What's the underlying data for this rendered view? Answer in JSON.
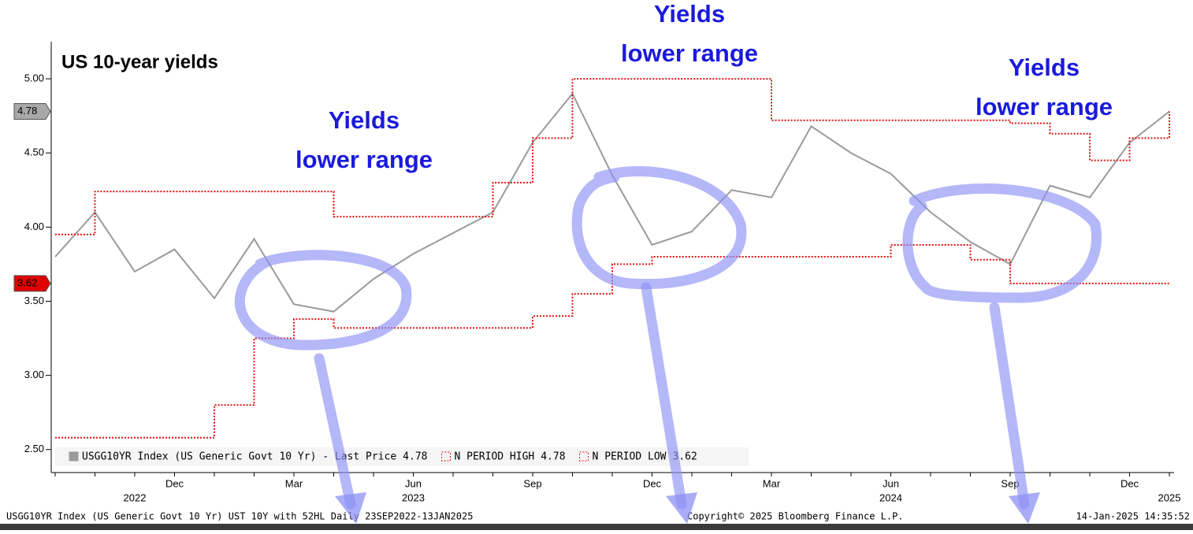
{
  "chart_data": {
    "type": "line",
    "title": "US 10-year yields",
    "x": [
      "2022-09",
      "2022-10",
      "2022-11",
      "2022-12",
      "2023-01",
      "2023-02",
      "2023-03",
      "2023-04",
      "2023-05",
      "2023-06",
      "2023-07",
      "2023-08",
      "2023-09",
      "2023-10",
      "2023-11",
      "2023-12",
      "2024-01",
      "2024-02",
      "2024-03",
      "2024-04",
      "2024-05",
      "2024-06",
      "2024-07",
      "2024-08",
      "2024-09",
      "2024-10",
      "2024-11",
      "2024-12",
      "2025-01"
    ],
    "series": [
      {
        "name": "USGG10YR Index (US Generic Govt 10 Yr) - Last Price",
        "color": "#9a9a9a",
        "style": "solid",
        "legend_value": 4.78,
        "values": [
          3.8,
          4.1,
          3.7,
          3.85,
          3.52,
          3.92,
          3.48,
          3.43,
          3.65,
          3.82,
          3.96,
          4.1,
          4.57,
          4.9,
          4.35,
          3.88,
          3.97,
          4.25,
          4.2,
          4.68,
          4.5,
          4.36,
          4.1,
          3.9,
          3.75,
          4.28,
          4.2,
          4.57,
          4.78
        ]
      },
      {
        "name": "N PERIOD HIGH",
        "color": "#e01010",
        "style": "step",
        "legend_value": 4.78,
        "values": [
          3.95,
          4.24,
          4.24,
          4.24,
          4.24,
          4.24,
          4.24,
          4.07,
          4.07,
          4.07,
          4.07,
          4.3,
          4.6,
          5.0,
          5.0,
          5.0,
          5.0,
          5.0,
          4.72,
          4.72,
          4.72,
          4.72,
          4.72,
          4.72,
          4.7,
          4.63,
          4.45,
          4.6,
          4.78
        ]
      },
      {
        "name": "N PERIOD LOW",
        "color": "#e01010",
        "style": "step",
        "legend_value": 3.62,
        "values": [
          2.58,
          2.58,
          2.58,
          2.58,
          2.8,
          3.25,
          3.38,
          3.32,
          3.32,
          3.32,
          3.32,
          3.32,
          3.4,
          3.55,
          3.75,
          3.8,
          3.8,
          3.8,
          3.8,
          3.8,
          3.8,
          3.88,
          3.88,
          3.78,
          3.62,
          3.62,
          3.62,
          3.62,
          3.62
        ]
      }
    ],
    "ylim": [
      2.35,
      5.25
    ],
    "yticks": [
      {
        "value": 2.5,
        "label": "2.50"
      },
      {
        "value": 3,
        "label": "3.00"
      },
      {
        "value": 3.5,
        "label": "3.50"
      },
      {
        "value": 4,
        "label": "4.00"
      },
      {
        "value": 4.5,
        "label": "4.50"
      },
      {
        "value": 5,
        "label": "5.00"
      }
    ],
    "xticks": [
      {
        "value": "2022-12",
        "label": "Dec"
      },
      {
        "value": "2023-03",
        "label": "Mar"
      },
      {
        "value": "2023-06",
        "label": "Jun"
      },
      {
        "value": "2023-09",
        "label": "Sep"
      },
      {
        "value": "2023-12",
        "label": "Dec"
      },
      {
        "value": "2024-03",
        "label": "Mar"
      },
      {
        "value": "2024-06",
        "label": "Jun"
      },
      {
        "value": "2024-09",
        "label": "Sep"
      },
      {
        "value": "2024-12",
        "label": "Dec"
      }
    ],
    "year_labels": [
      {
        "value": "2022-11",
        "label": "2022"
      },
      {
        "value": "2023-06",
        "label": "2023"
      },
      {
        "value": "2024-06",
        "label": "2024"
      },
      {
        "value": "2025-01",
        "label": "2025"
      }
    ],
    "axis_badges": [
      {
        "value": 4.78,
        "color": "#a8a8a8"
      },
      {
        "value": 3.62,
        "color": "#e00000"
      }
    ],
    "annotations": [
      [
        "Yields",
        "lower range"
      ],
      [
        "Yields",
        "lower range"
      ],
      [
        "Yields",
        "lower range"
      ]
    ],
    "footer": {
      "left": "USGG10YR Index (US Generic Govt 10 Yr) UST 10Y with 52HL  Daily 23SEP2022-13JAN2025",
      "center": "Copyright© 2025 Bloomberg Finance L.P.",
      "right": "14-Jan-2025 14:35:52"
    }
  }
}
